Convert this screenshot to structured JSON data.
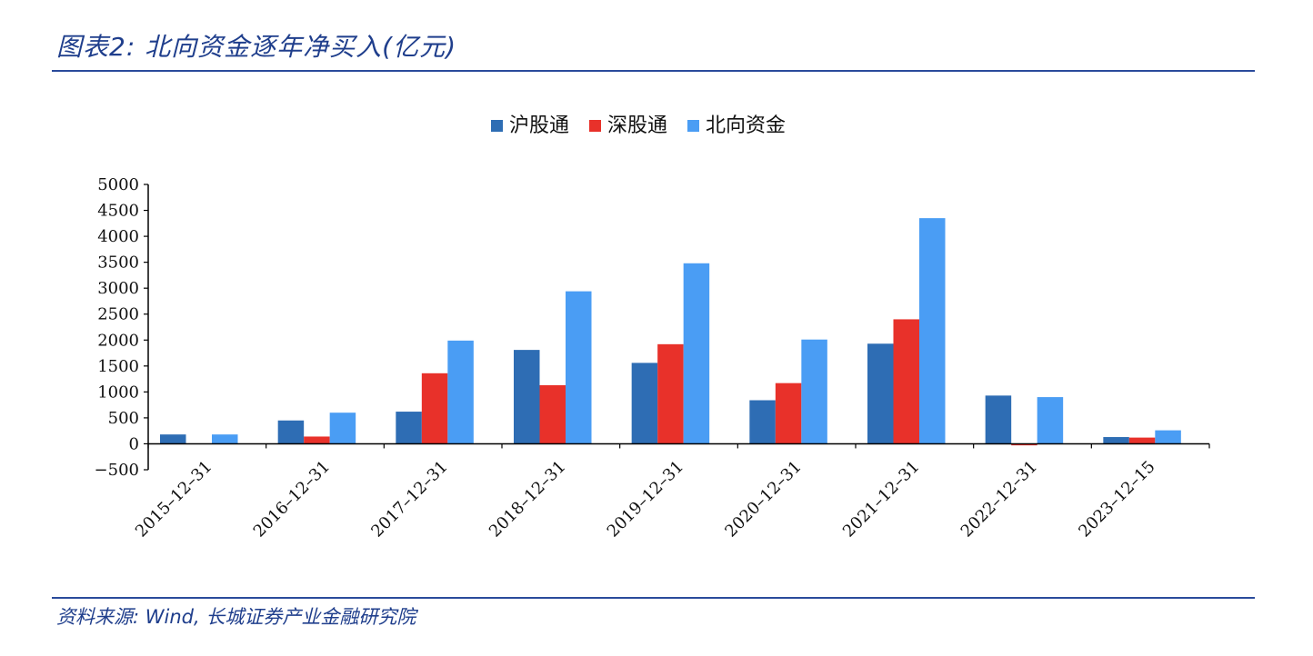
{
  "figure_title": "图表2:  北向资金逐年净买入(亿元)",
  "source_note": "资料来源:  Wind,  长城证券产业金融研究院",
  "chart_data": {
    "type": "bar",
    "title": "",
    "xlabel": "",
    "ylabel": "",
    "ylim": [
      -500,
      5000
    ],
    "yticks": [
      -500,
      0,
      500,
      1000,
      1500,
      2000,
      2500,
      3000,
      3500,
      4000,
      4500,
      5000
    ],
    "categories": [
      "2015-12-31",
      "2016-12-31",
      "2017-12-31",
      "2018-12-31",
      "2019-12-31",
      "2020-12-31",
      "2021-12-31",
      "2022-12-31",
      "2023-12-15"
    ],
    "legend_position": "top-center",
    "grid": false,
    "series": [
      {
        "name": "沪股通",
        "color": "#2e6db4",
        "values": [
          180,
          450,
          620,
          1810,
          1560,
          840,
          1930,
          930,
          130
        ]
      },
      {
        "name": "深股通",
        "color": "#e8312a",
        "values": [
          0,
          140,
          1360,
          1130,
          1920,
          1170,
          2400,
          -30,
          120
        ]
      },
      {
        "name": "北向资金",
        "color": "#4a9df4",
        "values": [
          180,
          600,
          1990,
          2940,
          3480,
          2010,
          4350,
          900,
          260
        ]
      }
    ]
  }
}
